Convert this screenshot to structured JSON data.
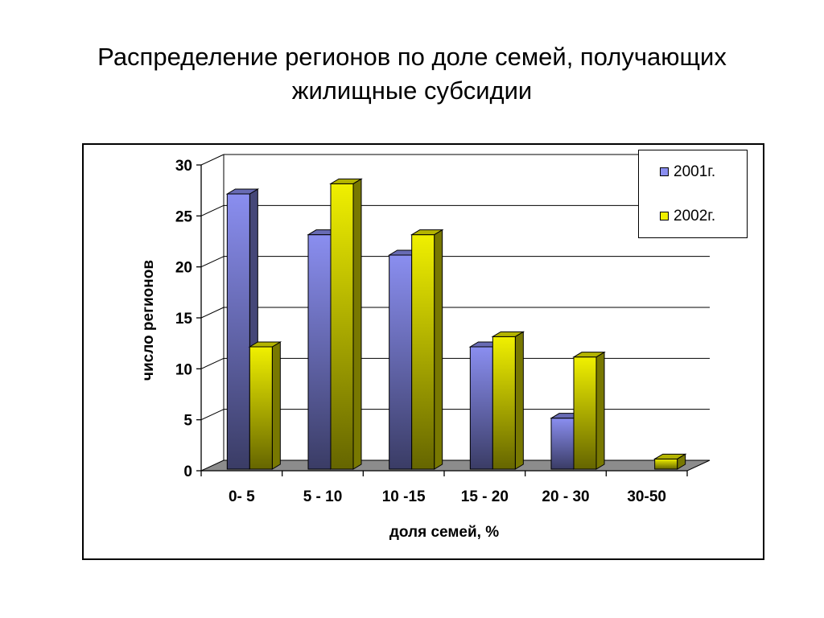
{
  "title": {
    "line1": "Распределение регионов по доле семей, получающих",
    "line2": "жилищные субсидии"
  },
  "chart_data": {
    "type": "bar",
    "title": "Распределение регионов по доле семей, получающих жилищные субсидии",
    "xlabel": "доля семей, %",
    "ylabel": "число регионов",
    "categories": [
      "0- 5",
      "5 - 10",
      "10 -15",
      "15 - 20",
      "20 - 30",
      "30-50"
    ],
    "series": [
      {
        "name": "2001г.",
        "values": [
          27,
          23,
          21,
          12,
          5,
          0
        ],
        "color": "#8a8ef0"
      },
      {
        "name": "2002г.",
        "values": [
          12,
          28,
          23,
          13,
          11,
          1
        ],
        "color": "#f0f000"
      }
    ],
    "ylim": [
      0,
      30
    ],
    "yticks": [
      0,
      5,
      10,
      15,
      20,
      25,
      30
    ],
    "grid": true,
    "legend": "top-right",
    "style": "3d-clustered-column"
  }
}
